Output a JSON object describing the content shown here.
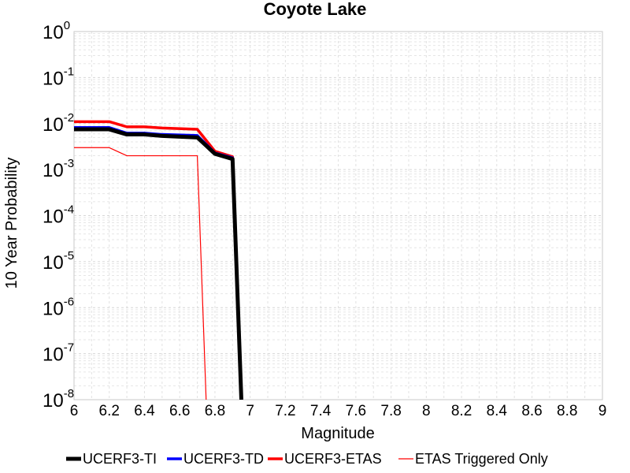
{
  "chart_data": {
    "type": "line",
    "title": "Coyote Lake",
    "xlabel": "Magnitude",
    "ylabel": "10 Year Probability",
    "xlim": [
      6,
      9
    ],
    "ylim": [
      1e-08,
      1
    ],
    "yscale": "log",
    "grid": true,
    "legend_position": "bottom",
    "xticks": [
      "6",
      "6.2",
      "6.4",
      "6.6",
      "6.8",
      "7",
      "7.2",
      "7.4",
      "7.6",
      "7.8",
      "8",
      "8.2",
      "8.4",
      "8.6",
      "8.8",
      "9"
    ],
    "yticks": [
      {
        "base": "10",
        "exp": "0"
      },
      {
        "base": "10",
        "exp": "-1"
      },
      {
        "base": "10",
        "exp": "-2"
      },
      {
        "base": "10",
        "exp": "-3"
      },
      {
        "base": "10",
        "exp": "-4"
      },
      {
        "base": "10",
        "exp": "-5"
      },
      {
        "base": "10",
        "exp": "-6"
      },
      {
        "base": "10",
        "exp": "-7"
      },
      {
        "base": "10",
        "exp": "-8"
      }
    ],
    "series": [
      {
        "name": "UCERF3-TI",
        "color": "#000000",
        "x": [
          6.0,
          6.2,
          6.3,
          6.4,
          6.5,
          6.7,
          6.8,
          6.9,
          6.95
        ],
        "y": [
          0.0075,
          0.0075,
          0.0058,
          0.0058,
          0.0054,
          0.005,
          0.0022,
          0.0017,
          1e-09
        ]
      },
      {
        "name": "UCERF3-TD",
        "color": "#0000ff",
        "x": [
          6.0,
          6.2,
          6.3,
          6.4,
          6.5,
          6.7,
          6.8,
          6.9,
          6.95
        ],
        "y": [
          0.0082,
          0.0082,
          0.0062,
          0.0062,
          0.0058,
          0.0055,
          0.0023,
          0.0018,
          1e-09
        ]
      },
      {
        "name": "UCERF3-ETAS",
        "color": "#ff0000",
        "x": [
          6.0,
          6.2,
          6.3,
          6.4,
          6.5,
          6.7,
          6.8,
          6.9,
          6.95
        ],
        "y": [
          0.011,
          0.011,
          0.0085,
          0.0085,
          0.008,
          0.0075,
          0.0025,
          0.0019,
          1e-09
        ]
      },
      {
        "name": "ETAS Triggered Only",
        "color": "#ff0000",
        "x": [
          6.0,
          6.2,
          6.3,
          6.7,
          6.75
        ],
        "y": [
          0.003,
          0.003,
          0.002,
          0.002,
          1e-09
        ]
      }
    ]
  }
}
